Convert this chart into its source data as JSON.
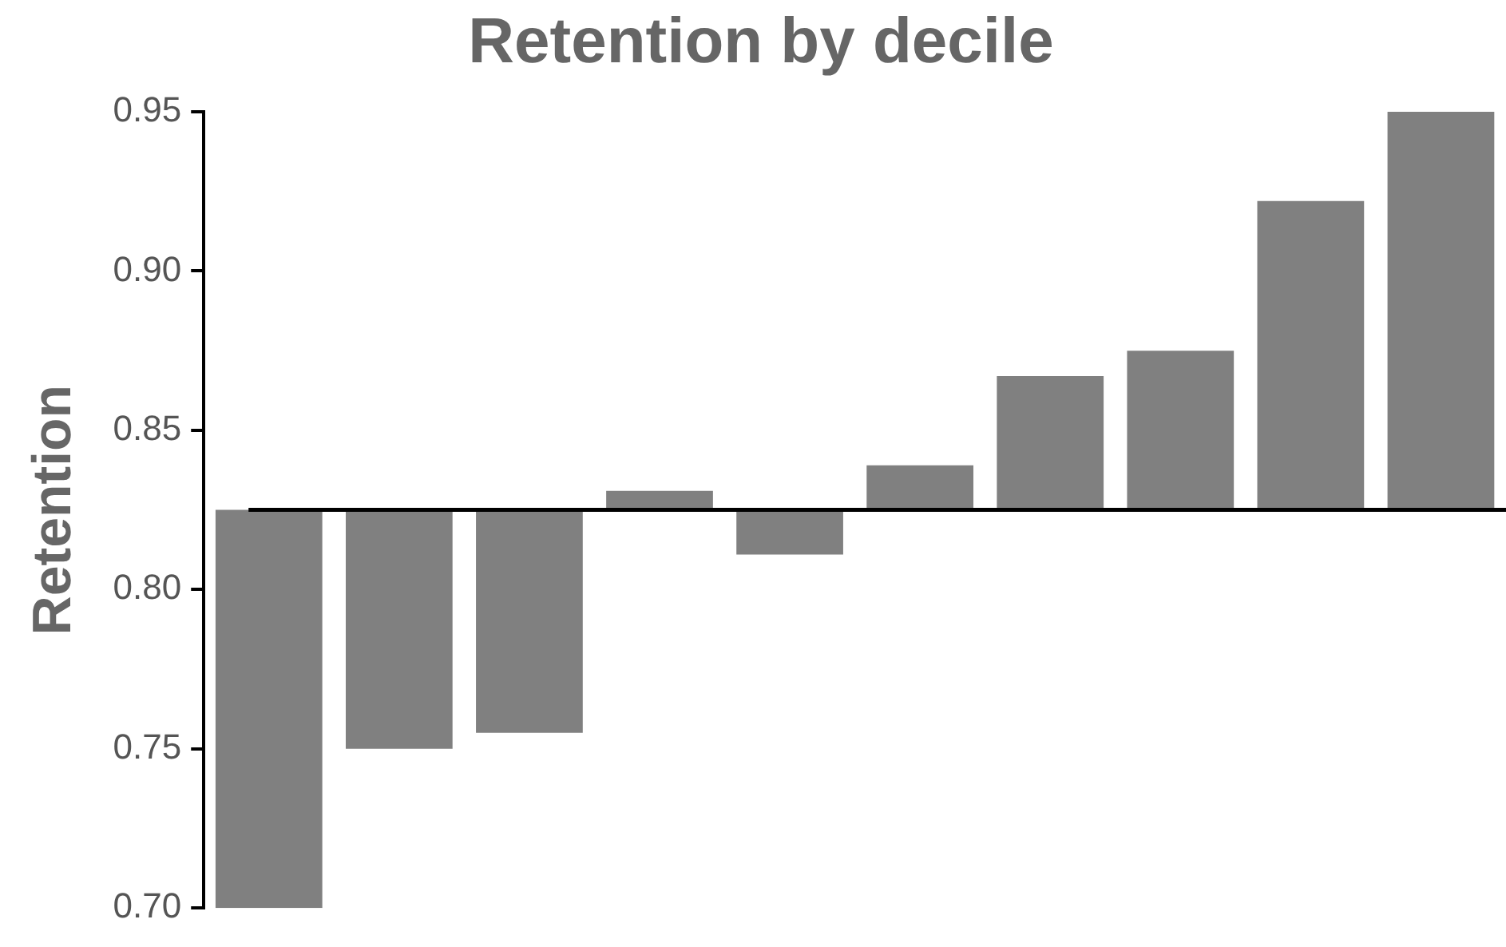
{
  "chart_data": {
    "type": "bar",
    "title": "Retention by decile",
    "ylabel": "Retention",
    "categories": [
      null,
      null,
      null,
      null,
      null,
      null,
      null,
      null,
      null,
      null
    ],
    "base": [
      0.825,
      0.825,
      0.825,
      0.825,
      0.825,
      0.825,
      0.825,
      0.825,
      0.825,
      0.825
    ],
    "values": [
      -0.125,
      -0.075,
      -0.07,
      0.006,
      -0.014,
      0.014,
      0.042,
      0.05,
      0.097,
      0.125
    ],
    "color": "#808080",
    "ylim": [
      0.7,
      0.95
    ],
    "yticks": [
      {
        "value": 0.7,
        "label": "0.70"
      },
      {
        "value": 0.75,
        "label": "0.75"
      },
      {
        "value": 0.8,
        "label": "0.80"
      },
      {
        "value": 0.85,
        "label": "0.85"
      },
      {
        "value": 0.9,
        "label": "0.90"
      },
      {
        "value": 0.95,
        "label": "0.95"
      }
    ],
    "ref_lines": [
      {
        "axis": "y",
        "value": 0.825,
        "color": "#000000"
      }
    ],
    "grid": false,
    "legend": false
  }
}
